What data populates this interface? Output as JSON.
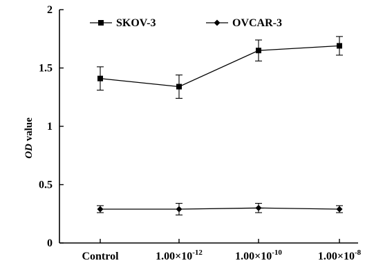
{
  "chart_data": {
    "type": "line",
    "categories": [
      "Control",
      "1.00×10",
      "1.00×10",
      "1.00×10"
    ],
    "category_exponents": [
      "",
      "-12",
      "-10",
      "-8"
    ],
    "ylabel_italic": "OD",
    "ylabel_rest": " value",
    "ylim": [
      0,
      2
    ],
    "yticks": [
      0,
      0.5,
      1,
      1.5,
      2
    ],
    "ytick_labels": [
      "0",
      "0.5",
      "1",
      "1.5",
      "2"
    ],
    "legend_position": "top",
    "grid": false,
    "series": [
      {
        "name": "SKOV-3",
        "marker": "square",
        "values": [
          1.41,
          1.34,
          1.65,
          1.69
        ],
        "errors": [
          0.1,
          0.1,
          0.09,
          0.08
        ]
      },
      {
        "name": "OVCAR-3",
        "marker": "diamond",
        "values": [
          0.29,
          0.29,
          0.3,
          0.29
        ],
        "errors": [
          0.03,
          0.05,
          0.04,
          0.03
        ]
      }
    ]
  }
}
